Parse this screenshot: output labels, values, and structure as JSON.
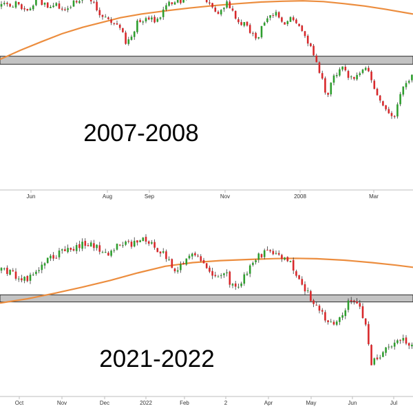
{
  "colors": {
    "up": "#2e9e2e",
    "down": "#d8282b",
    "wick": "#1a1a1a",
    "ma": "#ec8d3e",
    "band_fill": "#c3c3c3",
    "band_stroke": "#2a2a2a",
    "axis": "#bdbdbd"
  },
  "chart_data": [
    {
      "type": "candlestick",
      "label": "2007-2008",
      "x_ticks": [
        "Jun",
        "Aug",
        "Sep",
        "Nov",
        "2008",
        "Mar"
      ],
      "ylim": [
        1220,
        1580
      ],
      "support_band": [
        1420,
        1440
      ],
      "moving_average": [
        {
          "x": 0,
          "y": 1432
        },
        {
          "x": 30,
          "y": 1455
        },
        {
          "x": 60,
          "y": 1476
        },
        {
          "x": 90,
          "y": 1496
        },
        {
          "x": 120,
          "y": 1512
        },
        {
          "x": 150,
          "y": 1525
        },
        {
          "x": 175,
          "y": 1536
        },
        {
          "x": 205,
          "y": 1545
        },
        {
          "x": 240,
          "y": 1553
        },
        {
          "x": 275,
          "y": 1560
        },
        {
          "x": 310,
          "y": 1566
        },
        {
          "x": 345,
          "y": 1571
        },
        {
          "x": 380,
          "y": 1575
        },
        {
          "x": 410,
          "y": 1577
        },
        {
          "x": 440,
          "y": 1578
        },
        {
          "x": 470,
          "y": 1576
        },
        {
          "x": 500,
          "y": 1571
        },
        {
          "x": 530,
          "y": 1565
        },
        {
          "x": 560,
          "y": 1557
        },
        {
          "x": 600,
          "y": 1545
        }
      ],
      "price_path": [
        {
          "x": 0,
          "y": 1565
        },
        {
          "x": 20,
          "y": 1570
        },
        {
          "x": 40,
          "y": 1560
        },
        {
          "x": 55,
          "y": 1580
        },
        {
          "x": 70,
          "y": 1562
        },
        {
          "x": 85,
          "y": 1567
        },
        {
          "x": 95,
          "y": 1553
        },
        {
          "x": 110,
          "y": 1577
        },
        {
          "x": 125,
          "y": 1592
        },
        {
          "x": 135,
          "y": 1580
        },
        {
          "x": 145,
          "y": 1545
        },
        {
          "x": 160,
          "y": 1525
        },
        {
          "x": 175,
          "y": 1505
        },
        {
          "x": 185,
          "y": 1468
        },
        {
          "x": 200,
          "y": 1525
        },
        {
          "x": 215,
          "y": 1535
        },
        {
          "x": 230,
          "y": 1528
        },
        {
          "x": 245,
          "y": 1572
        },
        {
          "x": 260,
          "y": 1578
        },
        {
          "x": 275,
          "y": 1585
        },
        {
          "x": 290,
          "y": 1597
        },
        {
          "x": 300,
          "y": 1582
        },
        {
          "x": 315,
          "y": 1550
        },
        {
          "x": 330,
          "y": 1570
        },
        {
          "x": 345,
          "y": 1535
        },
        {
          "x": 360,
          "y": 1508
        },
        {
          "x": 372,
          "y": 1480
        },
        {
          "x": 385,
          "y": 1532
        },
        {
          "x": 398,
          "y": 1550
        },
        {
          "x": 410,
          "y": 1520
        },
        {
          "x": 425,
          "y": 1540
        },
        {
          "x": 440,
          "y": 1500
        },
        {
          "x": 452,
          "y": 1460
        },
        {
          "x": 465,
          "y": 1400
        },
        {
          "x": 475,
          "y": 1340
        },
        {
          "x": 487,
          "y": 1395
        },
        {
          "x": 497,
          "y": 1410
        },
        {
          "x": 508,
          "y": 1380
        },
        {
          "x": 520,
          "y": 1390
        },
        {
          "x": 535,
          "y": 1410
        },
        {
          "x": 548,
          "y": 1340
        },
        {
          "x": 562,
          "y": 1300
        },
        {
          "x": 572,
          "y": 1290
        },
        {
          "x": 585,
          "y": 1355
        },
        {
          "x": 600,
          "y": 1400
        }
      ]
    },
    {
      "type": "candlestick",
      "label": "2021-2022",
      "x_ticks": [
        "Oct",
        "Nov",
        "Dec",
        "2022",
        "Feb",
        "2",
        "Apr",
        "May",
        "Jun",
        "Jul"
      ],
      "ylim": [
        3600,
        4850
      ],
      "support_band": [
        4200,
        4250
      ],
      "moving_average": [
        {
          "x": 0,
          "y": 4192
        },
        {
          "x": 40,
          "y": 4222
        },
        {
          "x": 80,
          "y": 4262
        },
        {
          "x": 120,
          "y": 4305
        },
        {
          "x": 160,
          "y": 4352
        },
        {
          "x": 200,
          "y": 4405
        },
        {
          "x": 240,
          "y": 4452
        },
        {
          "x": 280,
          "y": 4478
        },
        {
          "x": 320,
          "y": 4492
        },
        {
          "x": 360,
          "y": 4500
        },
        {
          "x": 400,
          "y": 4506
        },
        {
          "x": 430,
          "y": 4508
        },
        {
          "x": 460,
          "y": 4505
        },
        {
          "x": 500,
          "y": 4495
        },
        {
          "x": 540,
          "y": 4478
        },
        {
          "x": 575,
          "y": 4460
        },
        {
          "x": 600,
          "y": 4445
        }
      ],
      "price_path": [
        {
          "x": 0,
          "y": 4420
        },
        {
          "x": 15,
          "y": 4410
        },
        {
          "x": 30,
          "y": 4360
        },
        {
          "x": 45,
          "y": 4380
        },
        {
          "x": 60,
          "y": 4450
        },
        {
          "x": 75,
          "y": 4520
        },
        {
          "x": 90,
          "y": 4560
        },
        {
          "x": 105,
          "y": 4580
        },
        {
          "x": 120,
          "y": 4610
        },
        {
          "x": 140,
          "y": 4605
        },
        {
          "x": 155,
          "y": 4530
        },
        {
          "x": 165,
          "y": 4580
        },
        {
          "x": 180,
          "y": 4610
        },
        {
          "x": 195,
          "y": 4620
        },
        {
          "x": 210,
          "y": 4640
        },
        {
          "x": 225,
          "y": 4600
        },
        {
          "x": 240,
          "y": 4520
        },
        {
          "x": 255,
          "y": 4400
        },
        {
          "x": 265,
          "y": 4460
        },
        {
          "x": 275,
          "y": 4530
        },
        {
          "x": 290,
          "y": 4520
        },
        {
          "x": 300,
          "y": 4450
        },
        {
          "x": 315,
          "y": 4360
        },
        {
          "x": 325,
          "y": 4420
        },
        {
          "x": 340,
          "y": 4300
        },
        {
          "x": 352,
          "y": 4350
        },
        {
          "x": 365,
          "y": 4480
        },
        {
          "x": 380,
          "y": 4540
        },
        {
          "x": 395,
          "y": 4560
        },
        {
          "x": 408,
          "y": 4520
        },
        {
          "x": 420,
          "y": 4480
        },
        {
          "x": 435,
          "y": 4380
        },
        {
          "x": 448,
          "y": 4250
        },
        {
          "x": 460,
          "y": 4190
        },
        {
          "x": 472,
          "y": 4080
        },
        {
          "x": 485,
          "y": 4020
        },
        {
          "x": 497,
          "y": 4100
        },
        {
          "x": 508,
          "y": 4230
        },
        {
          "x": 520,
          "y": 4200
        },
        {
          "x": 530,
          "y": 4050
        },
        {
          "x": 540,
          "y": 3760
        },
        {
          "x": 552,
          "y": 3830
        },
        {
          "x": 565,
          "y": 3900
        },
        {
          "x": 580,
          "y": 3930
        },
        {
          "x": 600,
          "y": 3900
        }
      ]
    }
  ]
}
